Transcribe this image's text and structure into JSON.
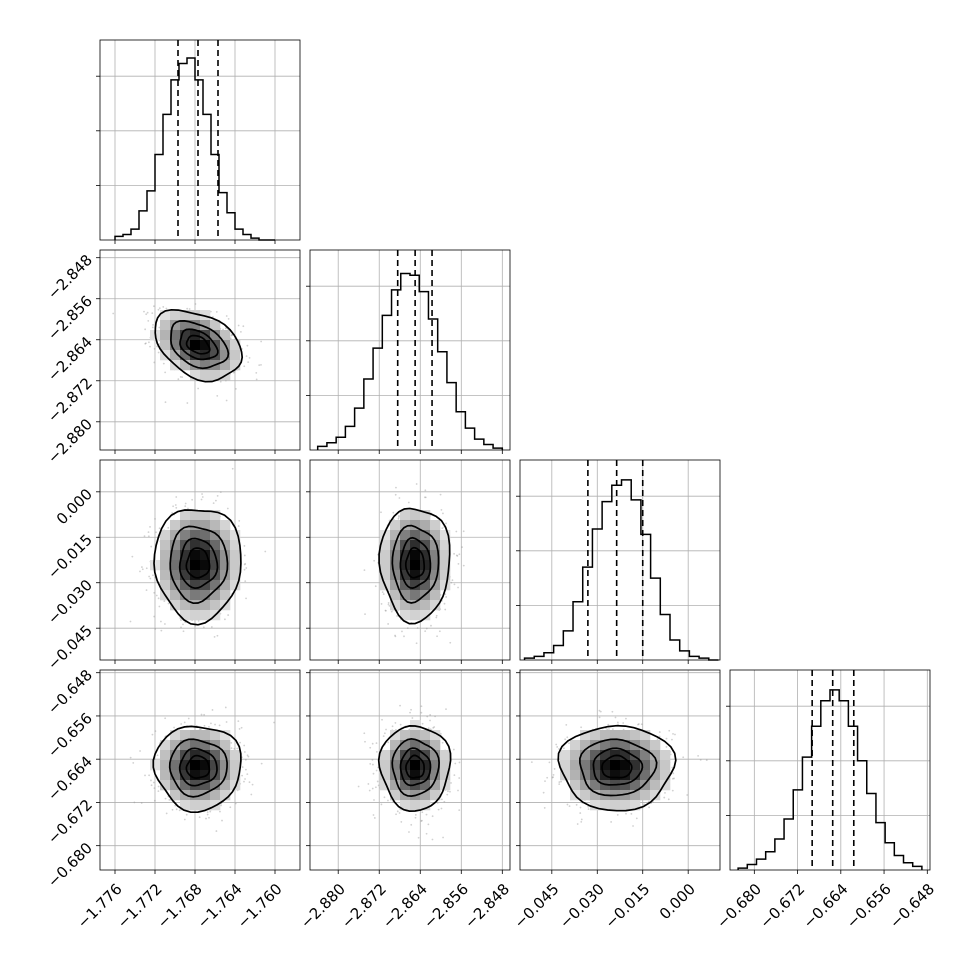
{
  "chart_data": {
    "type": "corner",
    "parameters": [
      {
        "id": "p1",
        "range": [
          -1.7775,
          -1.7575
        ],
        "ticks": [
          "-1.776",
          "-1.772",
          "-1.768",
          "-1.764",
          "-1.760"
        ],
        "median": -1.7677,
        "q16": -1.7697,
        "q84": -1.7657
      },
      {
        "id": "p2",
        "range": [
          -2.8855,
          -2.8465
        ],
        "ticks": [
          "-2.880",
          "-2.872",
          "-2.864",
          "-2.856",
          "-2.848"
        ],
        "median": -2.865,
        "q16": -2.8684,
        "q84": -2.8617
      },
      {
        "id": "p3",
        "range": [
          -0.0555,
          0.0105
        ],
        "ticks": [
          "-0.045",
          "-0.030",
          "-0.015",
          "0.000"
        ],
        "median": -0.0236,
        "q16": -0.0331,
        "q84": -0.015
      },
      {
        "id": "p4",
        "range": [
          -0.6845,
          -0.6475
        ],
        "ticks": [
          "-0.680",
          "-0.672",
          "-0.664",
          "-0.656",
          "-0.648"
        ],
        "median": -0.6655,
        "q16": -0.6693,
        "q84": -0.6616
      }
    ],
    "histograms": [
      {
        "param": 0,
        "bin_edges": [
          -1.776,
          -1.7752,
          -1.7744,
          -1.7736,
          -1.7728,
          -1.772,
          -1.7712,
          -1.7704,
          -1.7696,
          -1.7688,
          -1.768,
          -1.7672,
          -1.7664,
          -1.7656,
          -1.7648,
          -1.764,
          -1.7632,
          -1.7624,
          -1.7616,
          -1.7608,
          -1.76
        ],
        "counts": [
          0.02,
          0.03,
          0.06,
          0.16,
          0.27,
          0.47,
          0.69,
          0.88,
          0.97,
          1.0,
          0.88,
          0.69,
          0.47,
          0.26,
          0.15,
          0.06,
          0.03,
          0.01,
          0,
          0
        ]
      },
      {
        "param": 1,
        "bin_edges": [
          -2.884,
          -2.8822,
          -2.8804,
          -2.8786,
          -2.8768,
          -2.875,
          -2.8732,
          -2.8714,
          -2.8696,
          -2.8678,
          -2.866,
          -2.8642,
          -2.8624,
          -2.8606,
          -2.8588,
          -2.857,
          -2.8552,
          -2.8534,
          -2.8516,
          -2.8498,
          -2.848
        ],
        "counts": [
          0.02,
          0.04,
          0.07,
          0.13,
          0.23,
          0.39,
          0.56,
          0.74,
          0.88,
          0.97,
          0.96,
          0.87,
          0.72,
          0.54,
          0.37,
          0.21,
          0.12,
          0.06,
          0.03,
          0.01
        ]
      },
      {
        "param": 2,
        "bin_edges": [
          -0.054,
          -0.0508,
          -0.0476,
          -0.0444,
          -0.0412,
          -0.038,
          -0.0348,
          -0.0316,
          -0.0284,
          -0.0252,
          -0.022,
          -0.0188,
          -0.0156,
          -0.0124,
          -0.0092,
          -0.006,
          -0.0028,
          0.0004,
          0.0036,
          0.0068,
          0.01
        ],
        "counts": [
          0.01,
          0.02,
          0.04,
          0.08,
          0.16,
          0.32,
          0.51,
          0.72,
          0.87,
          0.96,
          0.99,
          0.88,
          0.69,
          0.45,
          0.25,
          0.11,
          0.05,
          0.02,
          0.01,
          0
        ]
      },
      {
        "param": 3,
        "bin_edges": [
          -0.683,
          -0.6813,
          -0.6796,
          -0.6779,
          -0.6762,
          -0.6745,
          -0.6728,
          -0.6711,
          -0.6694,
          -0.6677,
          -0.666,
          -0.6643,
          -0.6626,
          -0.6609,
          -0.6592,
          -0.6575,
          -0.6558,
          -0.6541,
          -0.6524,
          -0.6507,
          -0.649
        ],
        "counts": [
          0.01,
          0.03,
          0.06,
          0.1,
          0.17,
          0.28,
          0.44,
          0.62,
          0.79,
          0.93,
          0.99,
          0.93,
          0.79,
          0.6,
          0.42,
          0.26,
          0.15,
          0.08,
          0.04,
          0.02
        ]
      }
    ],
    "pairs": [
      {
        "x": 0,
        "y": 1,
        "center": [
          -1.7677,
          -2.865
        ],
        "sigma": [
          0.0021,
          0.0033
        ],
        "rho": -0.35
      },
      {
        "x": 0,
        "y": 2,
        "center": [
          -1.7677,
          -0.0236
        ],
        "sigma": [
          0.0021,
          0.0091
        ],
        "rho": 0.0
      },
      {
        "x": 1,
        "y": 2,
        "center": [
          -2.865,
          -0.0236
        ],
        "sigma": [
          0.0033,
          0.0091
        ],
        "rho": 0.0
      },
      {
        "x": 0,
        "y": 3,
        "center": [
          -1.7677,
          -0.6655
        ],
        "sigma": [
          0.0021,
          0.0038
        ],
        "rho": 0.0
      },
      {
        "x": 1,
        "y": 3,
        "center": [
          -2.865,
          -0.6655
        ],
        "sigma": [
          0.0033,
          0.0038
        ],
        "rho": 0.0
      },
      {
        "x": 2,
        "y": 3,
        "center": [
          -0.0236,
          -0.6655
        ],
        "sigma": [
          0.0091,
          0.0038
        ],
        "rho": 0.0
      }
    ],
    "contour_levels_sigma": [
      0.5,
      1.0,
      1.5,
      2.0
    ],
    "quantiles": [
      0.16,
      0.5,
      0.84
    ],
    "grid": true,
    "colors": {
      "line": "#000000",
      "grid": "#b0b0b0",
      "points": "#9a9a9a"
    }
  }
}
